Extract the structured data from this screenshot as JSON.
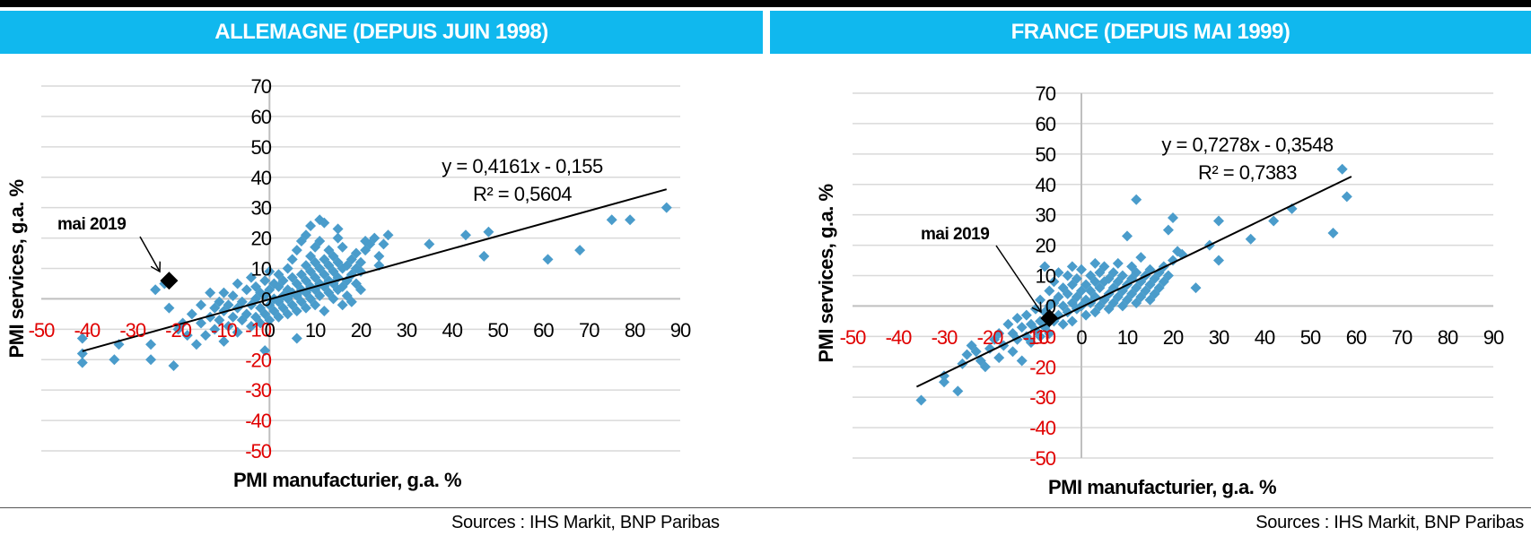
{
  "colors": {
    "header": "#10B8EE",
    "marker": "#4A9CCB",
    "negative_tick": "#E00000",
    "grid": "#D9D9D9"
  },
  "sources_left": "Sources : IHS Markit, BNP Paribas",
  "sources_right": "Sources : IHS Markit, BNP Paribas",
  "chart_data": [
    {
      "type": "scatter",
      "title": "ALLEMAGNE (DEPUIS JUIN 1998)",
      "xlabel": "PMI manufacturier, g.a. %",
      "ylabel": "PMI services, g.a. %",
      "xlim": [
        -50,
        90
      ],
      "ylim": [
        -50,
        70
      ],
      "xticks": [
        -50,
        -40,
        -30,
        -20,
        -10,
        0,
        10,
        20,
        30,
        40,
        50,
        60,
        70,
        80,
        90
      ],
      "yticks": [
        -50,
        -40,
        -30,
        -20,
        -10,
        0,
        10,
        20,
        30,
        40,
        50,
        60,
        70
      ],
      "grid": true,
      "trendline": {
        "slope": 0.4161,
        "intercept": -0.155,
        "x_range": [
          -41,
          87
        ]
      },
      "equation": "y = 0,4161x - 0,155",
      "r2": "R² = 0,5604",
      "highlight": {
        "label": "mai 2019",
        "x": -22,
        "y": 6
      },
      "points": [
        [
          -41,
          -18
        ],
        [
          -41,
          -21
        ],
        [
          -41,
          -13
        ],
        [
          -34,
          -20
        ],
        [
          -33,
          -15
        ],
        [
          -26,
          -20
        ],
        [
          -26,
          -15
        ],
        [
          -25,
          3
        ],
        [
          -23,
          5
        ],
        [
          -22,
          -3
        ],
        [
          -21,
          -22
        ],
        [
          -20,
          -10
        ],
        [
          -19,
          -8
        ],
        [
          -18,
          -12
        ],
        [
          -17,
          -5
        ],
        [
          -16,
          -15
        ],
        [
          -15,
          -8
        ],
        [
          -15,
          -2
        ],
        [
          -14,
          -12
        ],
        [
          -13,
          -6
        ],
        [
          -13,
          2
        ],
        [
          -12,
          -10
        ],
        [
          -12,
          -3
        ],
        [
          -11,
          -7
        ],
        [
          -11,
          -1
        ],
        [
          -10,
          -14
        ],
        [
          -10,
          -4
        ],
        [
          -10,
          2
        ],
        [
          -9,
          -9
        ],
        [
          -9,
          -2
        ],
        [
          -8,
          -6
        ],
        [
          -8,
          1
        ],
        [
          -7,
          -11
        ],
        [
          -7,
          -3
        ],
        [
          -7,
          5
        ],
        [
          -6,
          -7
        ],
        [
          -6,
          -1
        ],
        [
          -5,
          -5
        ],
        [
          -5,
          3
        ],
        [
          -4,
          -9
        ],
        [
          -4,
          -2
        ],
        [
          -4,
          7
        ],
        [
          -3,
          -6
        ],
        [
          -3,
          0
        ],
        [
          -3,
          4
        ],
        [
          -2,
          -8
        ],
        [
          -2,
          -3
        ],
        [
          -2,
          2
        ],
        [
          -1,
          -17
        ],
        [
          -1,
          -5
        ],
        [
          -1,
          1
        ],
        [
          -1,
          6
        ],
        [
          0,
          -7
        ],
        [
          0,
          -2
        ],
        [
          0,
          3
        ],
        [
          0,
          9
        ],
        [
          1,
          -4
        ],
        [
          1,
          0
        ],
        [
          1,
          5
        ],
        [
          2,
          -6
        ],
        [
          2,
          -1
        ],
        [
          2,
          4
        ],
        [
          2,
          8
        ],
        [
          3,
          -3
        ],
        [
          3,
          1
        ],
        [
          3,
          6
        ],
        [
          4,
          -5
        ],
        [
          4,
          0
        ],
        [
          4,
          3
        ],
        [
          4,
          10
        ],
        [
          5,
          -2
        ],
        [
          5,
          2
        ],
        [
          5,
          7
        ],
        [
          5,
          13
        ],
        [
          6,
          -4
        ],
        [
          6,
          1
        ],
        [
          6,
          5
        ],
        [
          6,
          16
        ],
        [
          6,
          -13
        ],
        [
          7,
          -1
        ],
        [
          7,
          3
        ],
        [
          7,
          8
        ],
        [
          7,
          19
        ],
        [
          8,
          -3
        ],
        [
          8,
          2
        ],
        [
          8,
          6
        ],
        [
          8,
          11
        ],
        [
          8,
          21
        ],
        [
          9,
          0
        ],
        [
          9,
          4
        ],
        [
          9,
          9
        ],
        [
          9,
          14
        ],
        [
          9,
          24
        ],
        [
          10,
          -2
        ],
        [
          10,
          3
        ],
        [
          10,
          7
        ],
        [
          10,
          12
        ],
        [
          10,
          17
        ],
        [
          11,
          1
        ],
        [
          11,
          5
        ],
        [
          11,
          10
        ],
        [
          11,
          19
        ],
        [
          11,
          26
        ],
        [
          12,
          -4
        ],
        [
          12,
          4
        ],
        [
          12,
          8
        ],
        [
          12,
          13
        ],
        [
          12,
          25
        ],
        [
          13,
          2
        ],
        [
          13,
          6
        ],
        [
          13,
          11
        ],
        [
          13,
          16
        ],
        [
          14,
          0
        ],
        [
          14,
          5
        ],
        [
          14,
          9
        ],
        [
          14,
          14
        ],
        [
          15,
          3
        ],
        [
          15,
          7
        ],
        [
          15,
          12
        ],
        [
          15,
          20
        ],
        [
          15,
          23
        ],
        [
          16,
          -2
        ],
        [
          16,
          4
        ],
        [
          16,
          10
        ],
        [
          16,
          17
        ],
        [
          17,
          6
        ],
        [
          17,
          11
        ],
        [
          17,
          1
        ],
        [
          18,
          8
        ],
        [
          18,
          13
        ],
        [
          18,
          -1
        ],
        [
          19,
          5
        ],
        [
          19,
          10
        ],
        [
          19,
          15
        ],
        [
          20,
          3
        ],
        [
          20,
          9
        ],
        [
          20,
          12
        ],
        [
          21,
          16
        ],
        [
          21,
          19
        ],
        [
          22,
          18
        ],
        [
          23,
          20
        ],
        [
          24,
          14
        ],
        [
          24,
          11
        ],
        [
          25,
          18
        ],
        [
          26,
          21
        ],
        [
          35,
          18
        ],
        [
          43,
          21
        ],
        [
          47,
          14
        ],
        [
          48,
          22
        ],
        [
          61,
          13
        ],
        [
          68,
          16
        ],
        [
          75,
          26
        ],
        [
          79,
          26
        ],
        [
          87,
          30
        ]
      ]
    },
    {
      "type": "scatter",
      "title": "FRANCE (DEPUIS MAI 1999)",
      "xlabel": "PMI manufacturier, g.a. %",
      "ylabel": "PMI services, g.a. %",
      "xlim": [
        -50,
        90
      ],
      "ylim": [
        -50,
        70
      ],
      "xticks": [
        -50,
        -40,
        -30,
        -20,
        -10,
        0,
        10,
        20,
        30,
        40,
        50,
        60,
        70,
        80,
        90
      ],
      "yticks": [
        -50,
        -40,
        -30,
        -20,
        -10,
        0,
        10,
        20,
        30,
        40,
        50,
        60,
        70
      ],
      "grid": true,
      "trendline": {
        "slope": 0.7278,
        "intercept": -0.3548,
        "x_range": [
          -36,
          59
        ]
      },
      "equation": "y = 0,7278x - 0,3548",
      "r2": "R² = 0,7383",
      "highlight": {
        "label": "mai 2019",
        "x": -7,
        "y": -4
      },
      "points": [
        [
          -35,
          -31
        ],
        [
          -30,
          -23
        ],
        [
          -30,
          -25
        ],
        [
          -27,
          -28
        ],
        [
          -26,
          -19
        ],
        [
          -25,
          -16
        ],
        [
          -24,
          -13
        ],
        [
          -23,
          -15
        ],
        [
          -22,
          -18
        ],
        [
          -21,
          -20
        ],
        [
          -20,
          -14
        ],
        [
          -19,
          -11
        ],
        [
          -18,
          -17
        ],
        [
          -18,
          -9
        ],
        [
          -17,
          -13
        ],
        [
          -16,
          -6
        ],
        [
          -15,
          -15
        ],
        [
          -15,
          -9
        ],
        [
          -14,
          -11
        ],
        [
          -14,
          -4
        ],
        [
          -13,
          -7
        ],
        [
          -13,
          -18
        ],
        [
          -12,
          -10
        ],
        [
          -12,
          -3
        ],
        [
          -11,
          -12
        ],
        [
          -11,
          -6
        ],
        [
          -10,
          -8
        ],
        [
          -10,
          -1
        ],
        [
          -9,
          -10
        ],
        [
          -9,
          -5
        ],
        [
          -9,
          2
        ],
        [
          -8,
          -7
        ],
        [
          -8,
          -2
        ],
        [
          -8,
          13
        ],
        [
          -7,
          -9
        ],
        [
          -7,
          0
        ],
        [
          -7,
          5
        ],
        [
          -6,
          -5
        ],
        [
          -6,
          1
        ],
        [
          -6,
          8
        ],
        [
          -5,
          -3
        ],
        [
          -5,
          3
        ],
        [
          -5,
          11
        ],
        [
          -4,
          -6
        ],
        [
          -4,
          0
        ],
        [
          -4,
          6
        ],
        [
          -3,
          -2
        ],
        [
          -3,
          4
        ],
        [
          -3,
          10
        ],
        [
          -2,
          -5
        ],
        [
          -2,
          1
        ],
        [
          -2,
          7
        ],
        [
          -2,
          13
        ],
        [
          -1,
          -1
        ],
        [
          -1,
          3
        ],
        [
          -1,
          9
        ],
        [
          0,
          0
        ],
        [
          0,
          5
        ],
        [
          0,
          12
        ],
        [
          1,
          -3
        ],
        [
          1,
          2
        ],
        [
          1,
          7
        ],
        [
          2,
          1
        ],
        [
          2,
          5
        ],
        [
          2,
          10
        ],
        [
          3,
          -2
        ],
        [
          3,
          3
        ],
        [
          3,
          8
        ],
        [
          3,
          14
        ],
        [
          4,
          0
        ],
        [
          4,
          6
        ],
        [
          4,
          11
        ],
        [
          5,
          2
        ],
        [
          5,
          8
        ],
        [
          5,
          13
        ],
        [
          6,
          -1
        ],
        [
          6,
          4
        ],
        [
          6,
          9
        ],
        [
          7,
          1
        ],
        [
          7,
          6
        ],
        [
          7,
          11
        ],
        [
          8,
          3
        ],
        [
          8,
          8
        ],
        [
          8,
          14
        ],
        [
          9,
          0
        ],
        [
          9,
          5
        ],
        [
          9,
          10
        ],
        [
          10,
          2
        ],
        [
          10,
          7
        ],
        [
          10,
          23
        ],
        [
          11,
          4
        ],
        [
          11,
          9
        ],
        [
          11,
          13
        ],
        [
          12,
          1
        ],
        [
          12,
          6
        ],
        [
          12,
          11
        ],
        [
          12,
          35
        ],
        [
          13,
          3
        ],
        [
          13,
          8
        ],
        [
          13,
          16
        ],
        [
          14,
          5
        ],
        [
          14,
          10
        ],
        [
          15,
          2
        ],
        [
          15,
          7
        ],
        [
          15,
          12
        ],
        [
          16,
          4
        ],
        [
          16,
          9
        ],
        [
          17,
          6
        ],
        [
          17,
          11
        ],
        [
          18,
          8
        ],
        [
          18,
          13
        ],
        [
          19,
          10
        ],
        [
          19,
          25
        ],
        [
          20,
          15
        ],
        [
          20,
          29
        ],
        [
          21,
          18
        ],
        [
          22,
          17
        ],
        [
          25,
          6
        ],
        [
          28,
          20
        ],
        [
          30,
          15
        ],
        [
          30,
          28
        ],
        [
          37,
          22
        ],
        [
          42,
          28
        ],
        [
          46,
          32
        ],
        [
          55,
          24
        ],
        [
          57,
          45
        ],
        [
          58,
          36
        ]
      ]
    }
  ]
}
